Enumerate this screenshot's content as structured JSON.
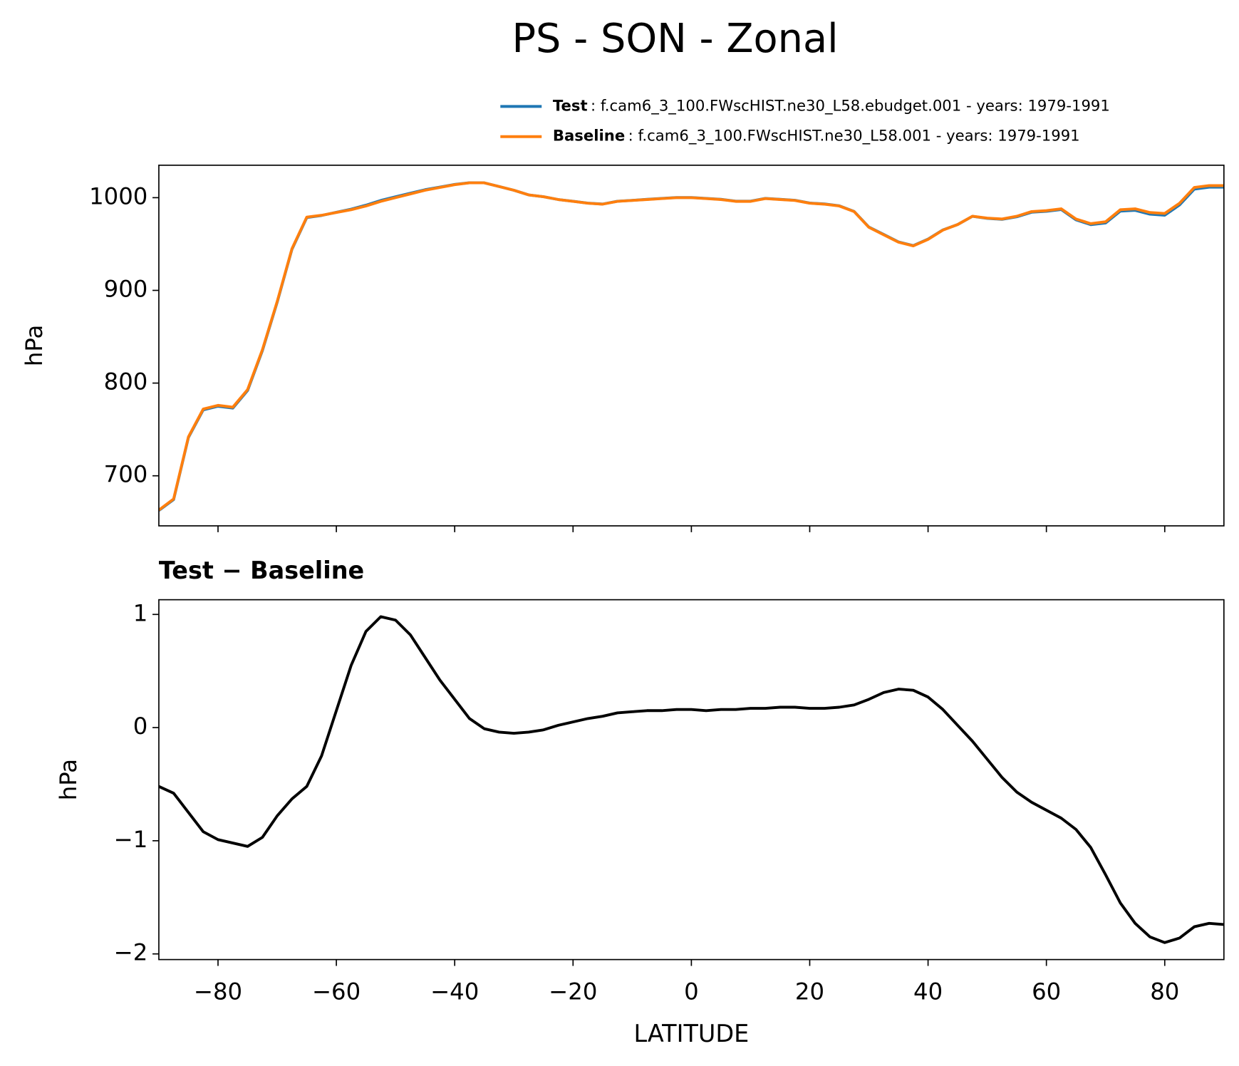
{
  "chart_data": [
    {
      "type": "line",
      "title": "PS - SON - Zonal",
      "ylabel": "hPa",
      "x": [
        -90,
        -87.5,
        -85,
        -82.5,
        -80,
        -77.5,
        -75,
        -72.5,
        -70,
        -67.5,
        -65,
        -62.5,
        -60,
        -57.5,
        -55,
        -52.5,
        -50,
        -47.5,
        -45,
        -42.5,
        -40,
        -37.5,
        -35,
        -32.5,
        -30,
        -27.5,
        -25,
        -22.5,
        -20,
        -17.5,
        -15,
        -12.5,
        -10,
        -7.5,
        -5,
        -2.5,
        0,
        2.5,
        5,
        7.5,
        10,
        12.5,
        15,
        17.5,
        20,
        22.5,
        25,
        27.5,
        30,
        32.5,
        35,
        37.5,
        40,
        42.5,
        45,
        47.5,
        50,
        52.5,
        55,
        57.5,
        60,
        62.5,
        65,
        67.5,
        70,
        72.5,
        75,
        77.5,
        80,
        82.5,
        85,
        87.5,
        90
      ],
      "series": [
        {
          "name": "Test",
          "detail": ": f.cam6_3_100.FWscHIST.ne30_L58.ebudget.001 - years: 1979-1991",
          "color": "#1f77b4",
          "values": [
            662.5,
            674.4,
            741.3,
            771.1,
            775.0,
            773.0,
            792.0,
            835.0,
            887.2,
            944.4,
            978.5,
            980.8,
            984.2,
            987.6,
            991.9,
            997.0,
            1001.0,
            1004.8,
            1008.6,
            1011.4,
            1014.3,
            1016.1,
            1016.0,
            1012.0,
            1008.0,
            1003.0,
            1001.0,
            998.0,
            996.1,
            994.1,
            993.1,
            996.1,
            997.1,
            998.2,
            999.2,
            1000.2,
            1000.2,
            999.2,
            998.2,
            996.2,
            996.2,
            999.2,
            998.2,
            997.2,
            994.2,
            993.2,
            991.2,
            985.2,
            968.3,
            960.3,
            952.3,
            948.3,
            955.3,
            965.2,
            971.0,
            979.9,
            977.7,
            976.6,
            979.4,
            984.3,
            985.3,
            987.2,
            976.1,
            970.9,
            972.7,
            985.5,
            986.3,
            982.2,
            981.1,
            992.1,
            1009.2,
            1011.3,
            1011.3
          ]
        },
        {
          "name": "Baseline",
          "detail": ": f.cam6_3_100.FWscHIST.ne30_L58.001 - years: 1979-1991",
          "color": "#ff7f0e",
          "values": [
            663,
            675,
            742,
            772,
            776,
            774,
            793,
            836,
            888,
            945,
            979,
            981,
            984,
            987,
            991,
            996,
            1000,
            1004,
            1008,
            1011,
            1014,
            1016,
            1016,
            1012,
            1008,
            1003,
            1001,
            998,
            996,
            994,
            993,
            996,
            997,
            998,
            999,
            1000,
            1000,
            999,
            998,
            996,
            996,
            999,
            998,
            997,
            994,
            993,
            991,
            985,
            968,
            960,
            952,
            948,
            955,
            965,
            971,
            980,
            978,
            977,
            980,
            985,
            986,
            988,
            977,
            972,
            974,
            987,
            988,
            984,
            983,
            994,
            1011,
            1013,
            1013
          ]
        }
      ],
      "xlim": [
        -90,
        90
      ],
      "xticks": [
        -80,
        -60,
        -40,
        -20,
        0,
        20,
        40,
        60,
        80
      ],
      "ylim": [
        646,
        1035
      ],
      "yticks": [
        700,
        800,
        900,
        1000
      ]
    },
    {
      "type": "line",
      "title": "Test − Baseline",
      "ylabel": "hPa",
      "xlabel": "LATITUDE",
      "x": [
        -90,
        -87.5,
        -85,
        -82.5,
        -80,
        -77.5,
        -75,
        -72.5,
        -70,
        -67.5,
        -65,
        -62.5,
        -60,
        -57.5,
        -55,
        -52.5,
        -50,
        -47.5,
        -45,
        -42.5,
        -40,
        -37.5,
        -35,
        -32.5,
        -30,
        -27.5,
        -25,
        -22.5,
        -20,
        -17.5,
        -15,
        -12.5,
        -10,
        -7.5,
        -5,
        -2.5,
        0,
        2.5,
        5,
        7.5,
        10,
        12.5,
        15,
        17.5,
        20,
        22.5,
        25,
        27.5,
        30,
        32.5,
        35,
        37.5,
        40,
        42.5,
        45,
        47.5,
        50,
        52.5,
        55,
        57.5,
        60,
        62.5,
        65,
        67.5,
        70,
        72.5,
        75,
        77.5,
        80,
        82.5,
        85,
        87.5,
        90
      ],
      "series": [
        {
          "color": "#000000",
          "values": [
            -0.52,
            -0.58,
            -0.75,
            -0.92,
            -0.99,
            -1.02,
            -1.05,
            -0.97,
            -0.78,
            -0.63,
            -0.52,
            -0.25,
            0.15,
            0.55,
            0.85,
            0.98,
            0.95,
            0.82,
            0.62,
            0.42,
            0.25,
            0.08,
            -0.01,
            -0.04,
            -0.05,
            -0.04,
            -0.02,
            0.02,
            0.05,
            0.08,
            0.1,
            0.13,
            0.14,
            0.15,
            0.15,
            0.16,
            0.16,
            0.15,
            0.16,
            0.16,
            0.17,
            0.17,
            0.18,
            0.18,
            0.17,
            0.17,
            0.18,
            0.2,
            0.25,
            0.31,
            0.34,
            0.33,
            0.27,
            0.16,
            0.02,
            -0.12,
            -0.28,
            -0.44,
            -0.57,
            -0.66,
            -0.73,
            -0.8,
            -0.9,
            -1.06,
            -1.3,
            -1.55,
            -1.73,
            -1.85,
            -1.9,
            -1.86,
            -1.76,
            -1.73,
            -1.74
          ]
        }
      ],
      "xlim": [
        -90,
        90
      ],
      "xticks": [
        {
          "value": -80,
          "label": "−80"
        },
        {
          "value": -60,
          "label": "−60"
        },
        {
          "value": -40,
          "label": "−40"
        },
        {
          "value": -20,
          "label": "−20"
        },
        0,
        20,
        40,
        60,
        80
      ],
      "ylim": [
        -2.05,
        1.13
      ],
      "yticks": [
        {
          "value": -2,
          "label": "−2"
        },
        {
          "value": -1,
          "label": "−1"
        },
        0,
        1
      ]
    }
  ]
}
